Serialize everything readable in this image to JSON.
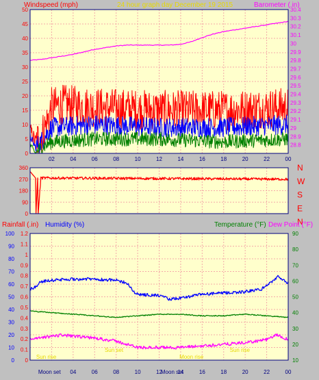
{
  "header": {
    "windspeed_label": "Windspeed (mph)",
    "title": "24 hour graph day   December 19 2015",
    "barometer_label": "Barometer (.in)"
  },
  "colors": {
    "plot_bg": "#ffffcc",
    "grid": "#f4a8a8",
    "red": "#ff0000",
    "blue": "#0000ff",
    "green": "#008000",
    "magenta": "#ff00ff",
    "purple": "#7700cc",
    "yellow": "#e6d800",
    "axis": "#000080"
  },
  "chart_data": [
    {
      "type": "line",
      "name": "wind-barometer",
      "x_ticks": [
        "02",
        "04",
        "06",
        "08",
        "10",
        "12",
        "14",
        "16",
        "18",
        "20",
        "22",
        "00"
      ],
      "y_left": {
        "label": "Windspeed (mph)",
        "range": [
          0,
          50
        ],
        "ticks": [
          0,
          5,
          10,
          15,
          20,
          25,
          30,
          35,
          40,
          45,
          50
        ]
      },
      "y_right": {
        "label": "Barometer (.in)",
        "range": [
          28.7,
          30.4
        ],
        "ticks": [
          "28.8",
          "28.9",
          "29",
          "29.1",
          "29.2",
          "29.3",
          "29.4",
          "29.5",
          "29.6",
          "29.7",
          "29.8",
          "29.9",
          "30",
          "30.1",
          "30.2",
          "30.3",
          "30.4"
        ]
      },
      "series": [
        {
          "role": "barometer",
          "axis": "right",
          "x": [
            0,
            1,
            2,
            3,
            4,
            5,
            6,
            7,
            8,
            9,
            10,
            11,
            12,
            13,
            14,
            15,
            16,
            17,
            18,
            19,
            20,
            21,
            22,
            23,
            24
          ],
          "y": [
            29.8,
            29.81,
            29.83,
            29.85,
            29.87,
            29.9,
            29.93,
            29.95,
            29.97,
            29.98,
            29.98,
            29.98,
            29.98,
            29.98,
            29.99,
            30.02,
            30.07,
            30.11,
            30.14,
            30.16,
            30.18,
            30.2,
            30.22,
            30.24,
            30.26
          ]
        },
        {
          "role": "gust",
          "axis": "left",
          "mean": 16,
          "spread": 7,
          "x": [
            0,
            0.5,
            1,
            1.5,
            2,
            3,
            6,
            12,
            18,
            24
          ],
          "y": [
            8,
            4,
            6,
            10,
            16,
            17,
            16,
            15,
            15,
            16
          ]
        },
        {
          "role": "average",
          "axis": "left",
          "mean": 10,
          "spread": 3.5,
          "x": [
            0,
            0.5,
            1,
            2,
            6,
            12,
            18,
            24
          ],
          "y": [
            6,
            2,
            4,
            9,
            10,
            9,
            9,
            10
          ]
        },
        {
          "role": "minimum",
          "axis": "left",
          "mean": 5,
          "spread": 2.5,
          "x": [
            0,
            0.5,
            1,
            2,
            6,
            12,
            18,
            24
          ],
          "y": [
            3,
            0,
            2,
            4,
            5,
            5,
            4,
            5
          ]
        }
      ]
    },
    {
      "type": "line",
      "name": "wind-direction",
      "y_left": {
        "range": [
          0,
          360
        ],
        "ticks": [
          0,
          90,
          180,
          270,
          360
        ]
      },
      "compass": [
        "N",
        "W",
        "S",
        "E",
        "N"
      ],
      "series": [
        {
          "role": "direction",
          "base": 270,
          "spread": 10,
          "x": [
            0,
            0.5,
            0.55,
            0.7,
            0.75,
            1,
            24
          ],
          "y": [
            330,
            280,
            0,
            280,
            0,
            280,
            270
          ]
        }
      ]
    },
    {
      "type": "line",
      "name": "rain-humidity-temperature",
      "x_ticks": [
        "02",
        "04",
        "06",
        "08",
        "10",
        "12",
        "14",
        "16",
        "18",
        "20",
        "22",
        "00"
      ],
      "rain_axis": {
        "label": "Rainfall (.in)",
        "range": [
          0,
          1.2
        ],
        "ticks": [
          "0",
          "0.1",
          "0.2",
          "0.3",
          "0.4",
          "0.5",
          "0.6",
          "0.7",
          "0.8",
          "0.9",
          "1",
          "1.1",
          "1.2"
        ]
      },
      "humidity_axis": {
        "label": "Humidity (%)",
        "range": [
          0,
          100
        ],
        "ticks": [
          0,
          10,
          20,
          30,
          40,
          50,
          60,
          70,
          80,
          90,
          100
        ]
      },
      "temperature_axis": {
        "label": "Temperature (°F)",
        "label2": "Dew Point (°F)",
        "range": [
          10,
          90
        ],
        "ticks": [
          10,
          20,
          30,
          40,
          50,
          60,
          70,
          80,
          90
        ]
      },
      "series": [
        {
          "role": "humidity",
          "axis": "humidity",
          "x": [
            0,
            0.5,
            1,
            2,
            4,
            6,
            8,
            9,
            9.5,
            10,
            12,
            13,
            14,
            16,
            18,
            20,
            21.5,
            22.5,
            23,
            23.5,
            24
          ],
          "y": [
            56,
            58,
            62,
            63,
            64,
            64,
            63,
            61,
            55,
            52,
            51,
            48,
            49,
            52,
            53,
            54,
            56,
            62,
            66,
            63,
            61
          ]
        },
        {
          "role": "temperature",
          "axis": "temperature",
          "x": [
            0,
            2,
            4,
            6,
            8,
            10,
            12,
            14,
            16,
            18,
            20,
            22,
            24
          ],
          "y": [
            41,
            40,
            39,
            38,
            37,
            38,
            39,
            39,
            38,
            38,
            39,
            38,
            37
          ]
        },
        {
          "role": "dew_point",
          "axis": "temperature",
          "x": [
            0,
            2,
            3,
            4,
            6,
            8,
            9,
            10,
            12,
            14,
            16,
            18,
            20,
            22,
            23,
            24
          ],
          "y": [
            23,
            25,
            26,
            25,
            24,
            22,
            20,
            18,
            18,
            18,
            19,
            20,
            21,
            23,
            26,
            23
          ]
        }
      ],
      "annotations": [
        {
          "text": "Sun rise",
          "hour": 1.5,
          "row": 0
        },
        {
          "text": "Sun set",
          "hour": 7.8,
          "row": 1
        },
        {
          "text": "Moon rise",
          "hour": 15.0,
          "row": 0
        },
        {
          "text": "Sun rise",
          "hour": 19.5,
          "row": 1
        }
      ],
      "moon_labels": [
        {
          "text": "Moon set",
          "hour": 1.8
        },
        {
          "text": "Moon set",
          "hour": 13.2
        }
      ]
    }
  ]
}
